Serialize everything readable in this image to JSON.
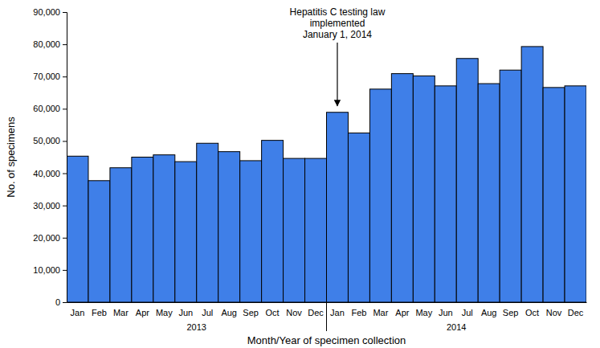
{
  "chart_data": {
    "type": "bar",
    "y_label": "No. of specimens",
    "x_label": "Month/Year of specimen collection",
    "categories": [
      "Jan",
      "Feb",
      "Mar",
      "Apr",
      "May",
      "Jun",
      "Jul",
      "Aug",
      "Sep",
      "Oct",
      "Nov",
      "Dec",
      "Jan",
      "Feb",
      "Mar",
      "Apr",
      "May",
      "Jun",
      "Jul",
      "Aug",
      "Sep",
      "Oct",
      "Nov",
      "Dec"
    ],
    "x_groups": [
      "2013",
      "2014"
    ],
    "values": [
      45300,
      37700,
      41700,
      45000,
      45700,
      43600,
      49300,
      46700,
      43900,
      50200,
      44600,
      44600,
      58900,
      52500,
      66100,
      70900,
      70200,
      67100,
      75600,
      67800,
      72000,
      79300,
      66600,
      67100
    ],
    "color": "#3f7fe8",
    "ylim": [
      0,
      90000
    ],
    "yticks": [
      0,
      {
        "value": 10000,
        "label": "10,000"
      },
      {
        "value": 20000,
        "label": "20,000"
      },
      {
        "value": 30000,
        "label": "30,000"
      },
      {
        "value": 40000,
        "label": "40,000"
      },
      {
        "value": 50000,
        "label": "50,000"
      },
      {
        "value": 60000,
        "label": "60,000"
      },
      {
        "value": 70000,
        "label": "70,000"
      },
      {
        "value": 80000,
        "label": "80,000"
      },
      {
        "value": 90000,
        "label": "90,000"
      }
    ],
    "grid": false,
    "annotations": [
      {
        "text": [
          "Hepatitis C testing law",
          "implemented",
          "January 1, 2014"
        ],
        "x": 12
      }
    ]
  }
}
